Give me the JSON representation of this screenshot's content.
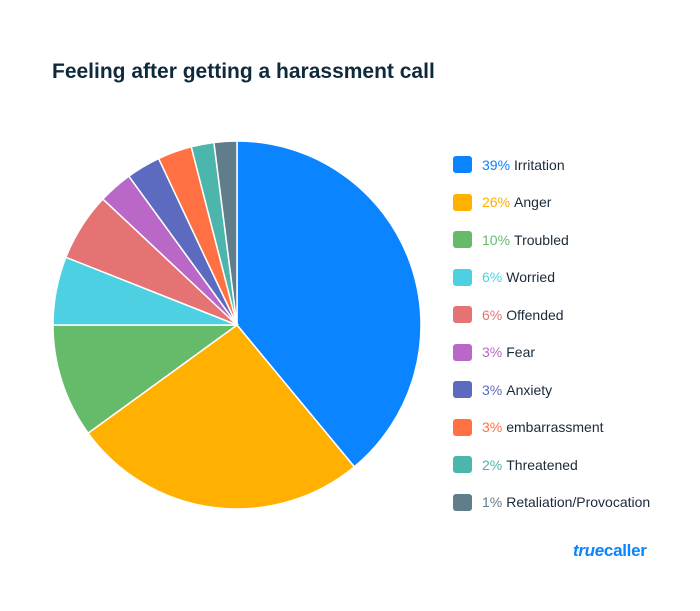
{
  "chart_data": {
    "type": "pie",
    "title": "Feeling after getting a harassment call",
    "legend_position": "right",
    "slices": [
      {
        "label": "Irritation",
        "value": 39,
        "color": "#0a84ff"
      },
      {
        "label": "Anger",
        "value": 26,
        "color": "#ffb000"
      },
      {
        "label": "Troubled",
        "value": 10,
        "color": "#66bb6a"
      },
      {
        "label": "Worried",
        "value": 6,
        "color": "#4dd0e1"
      },
      {
        "label": "Offended",
        "value": 6,
        "color": "#e57373"
      },
      {
        "label": "Fear",
        "value": 3,
        "color": "#ba68c8"
      },
      {
        "label": "Anxiety",
        "value": 3,
        "color": "#5c6bc0"
      },
      {
        "label": "embarrassment",
        "value": 3,
        "color": "#ff7043"
      },
      {
        "label": "Threatened",
        "value": 2,
        "color": "#4db6ac"
      },
      {
        "label": "Retaliation/Provocation",
        "value": 1,
        "color": "#607d8b"
      }
    ]
  },
  "brand": {
    "logo_text": "truecaller"
  }
}
